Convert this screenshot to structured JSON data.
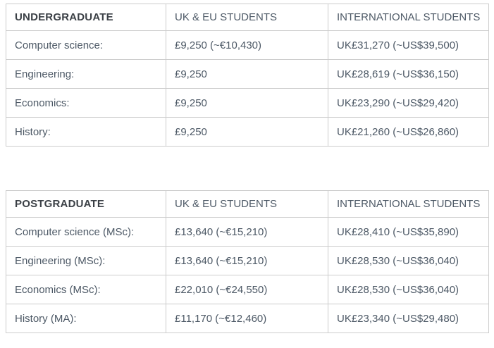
{
  "colors": {
    "background": "#ffffff",
    "border": "#cccccc",
    "body_text": "#4d5966",
    "category_heading_text": "#3b4046"
  },
  "tables": [
    {
      "id": "undergraduate",
      "header": [
        "UNDERGRADUATE",
        "UK & EU STUDENTS",
        "INTERNATIONAL STUDENTS"
      ],
      "rows": [
        [
          "Computer science:",
          "£9,250 (~€10,430)",
          "UK£31,270 (~US$39,500)"
        ],
        [
          "Engineering:",
          "£9,250",
          "UK£28,619 (~US$36,150)"
        ],
        [
          "Economics:",
          "£9,250",
          "UK£23,290 (~US$29,420)"
        ],
        [
          "History:",
          "£9,250",
          "UK£21,260 (~US$26,860)"
        ]
      ]
    },
    {
      "id": "postgraduate",
      "header": [
        "POSTGRADUATE",
        "UK & EU STUDENTS",
        "INTERNATIONAL STUDENTS"
      ],
      "rows": [
        [
          "Computer science (MSc):",
          "£13,640 (~€15,210)",
          "UK£28,410 (~US$35,890)"
        ],
        [
          "Engineering (MSc):",
          "£13,640 (~€15,210)",
          "UK£28,530 (~US$36,040)"
        ],
        [
          "Economics (MSc):",
          "£22,010 (~€24,550)",
          "UK£28,530 (~US$36,040)"
        ],
        [
          "History (MA):",
          "£11,170 (~€12,460)",
          "UK£23,340 (~US$29,480)"
        ]
      ]
    }
  ]
}
